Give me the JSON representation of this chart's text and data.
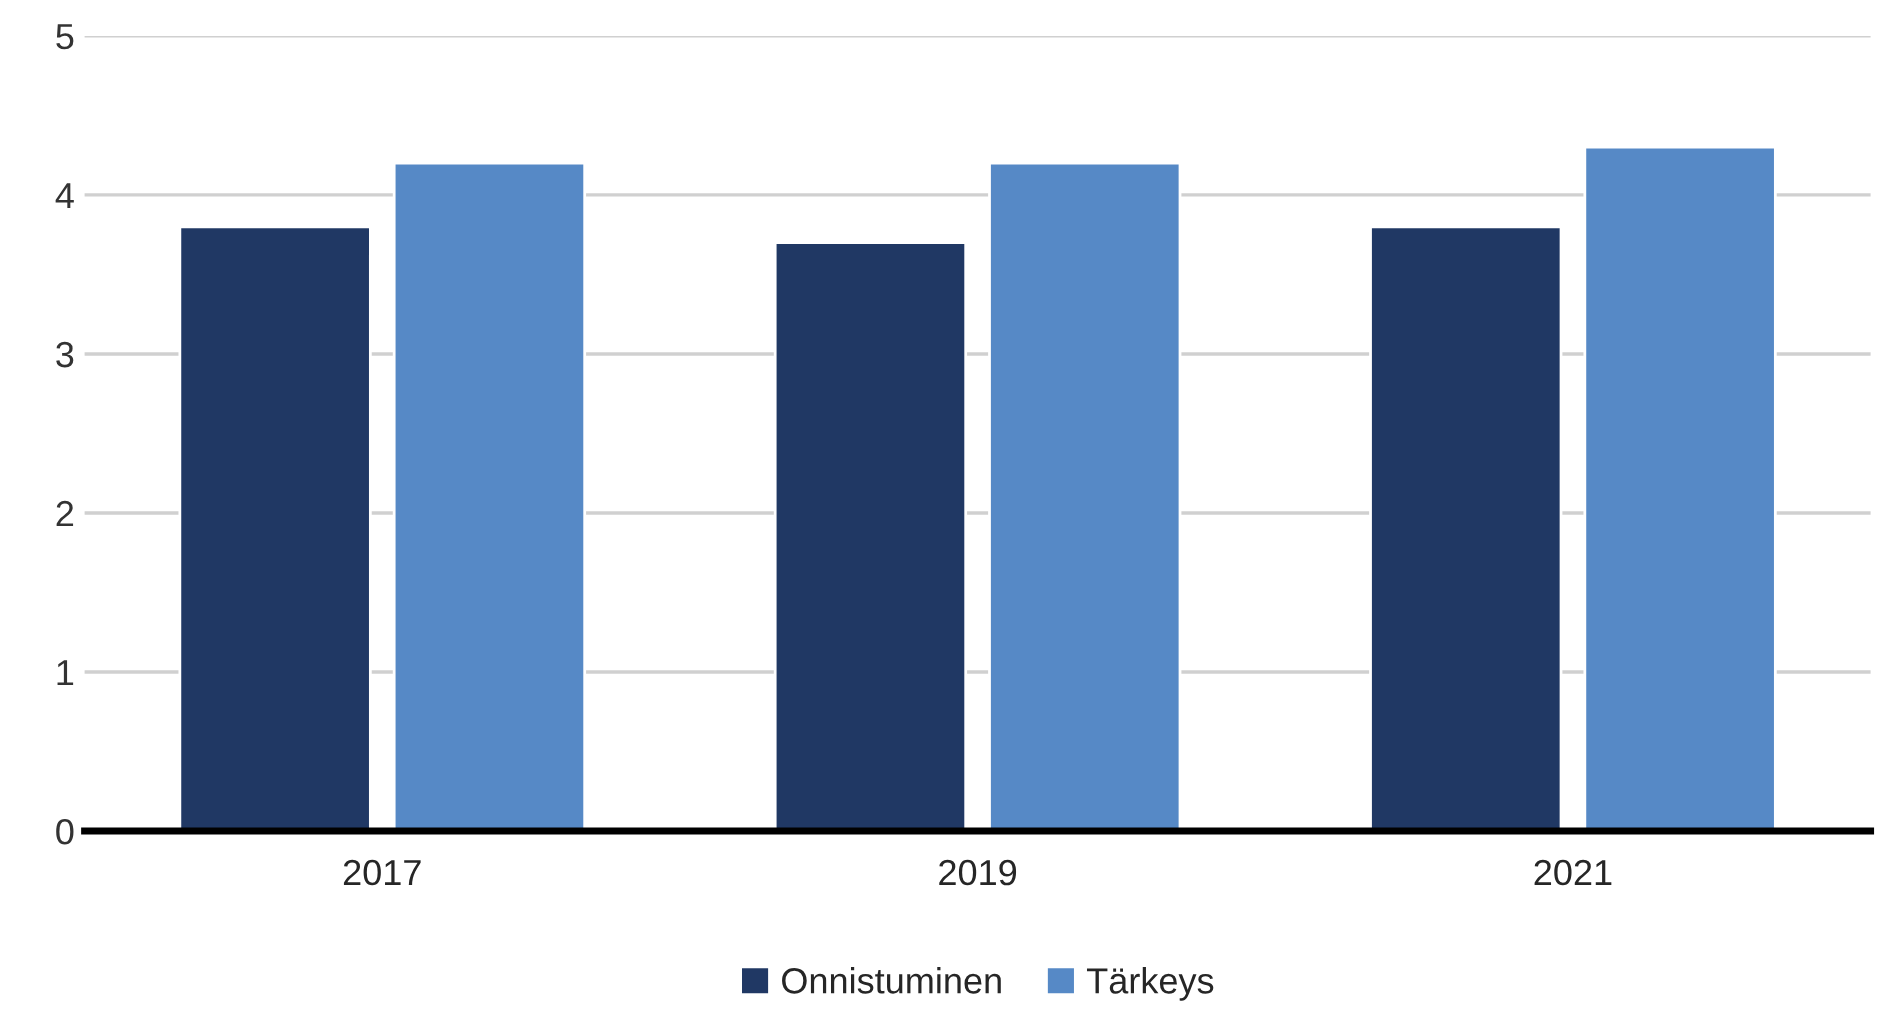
{
  "chart_data": {
    "type": "bar",
    "categories": [
      "2017",
      "2019",
      "2021"
    ],
    "series": [
      {
        "name": "Onnistuminen",
        "color": "#203864",
        "values": [
          3.8,
          3.7,
          3.8
        ]
      },
      {
        "name": "Tärkeys",
        "color": "#5689c6",
        "values": [
          4.2,
          4.2,
          4.3
        ]
      }
    ],
    "ylim": [
      0,
      5
    ],
    "yticks": [
      0,
      1,
      2,
      3,
      4,
      5
    ],
    "grid": "y",
    "legend": "bottom"
  }
}
